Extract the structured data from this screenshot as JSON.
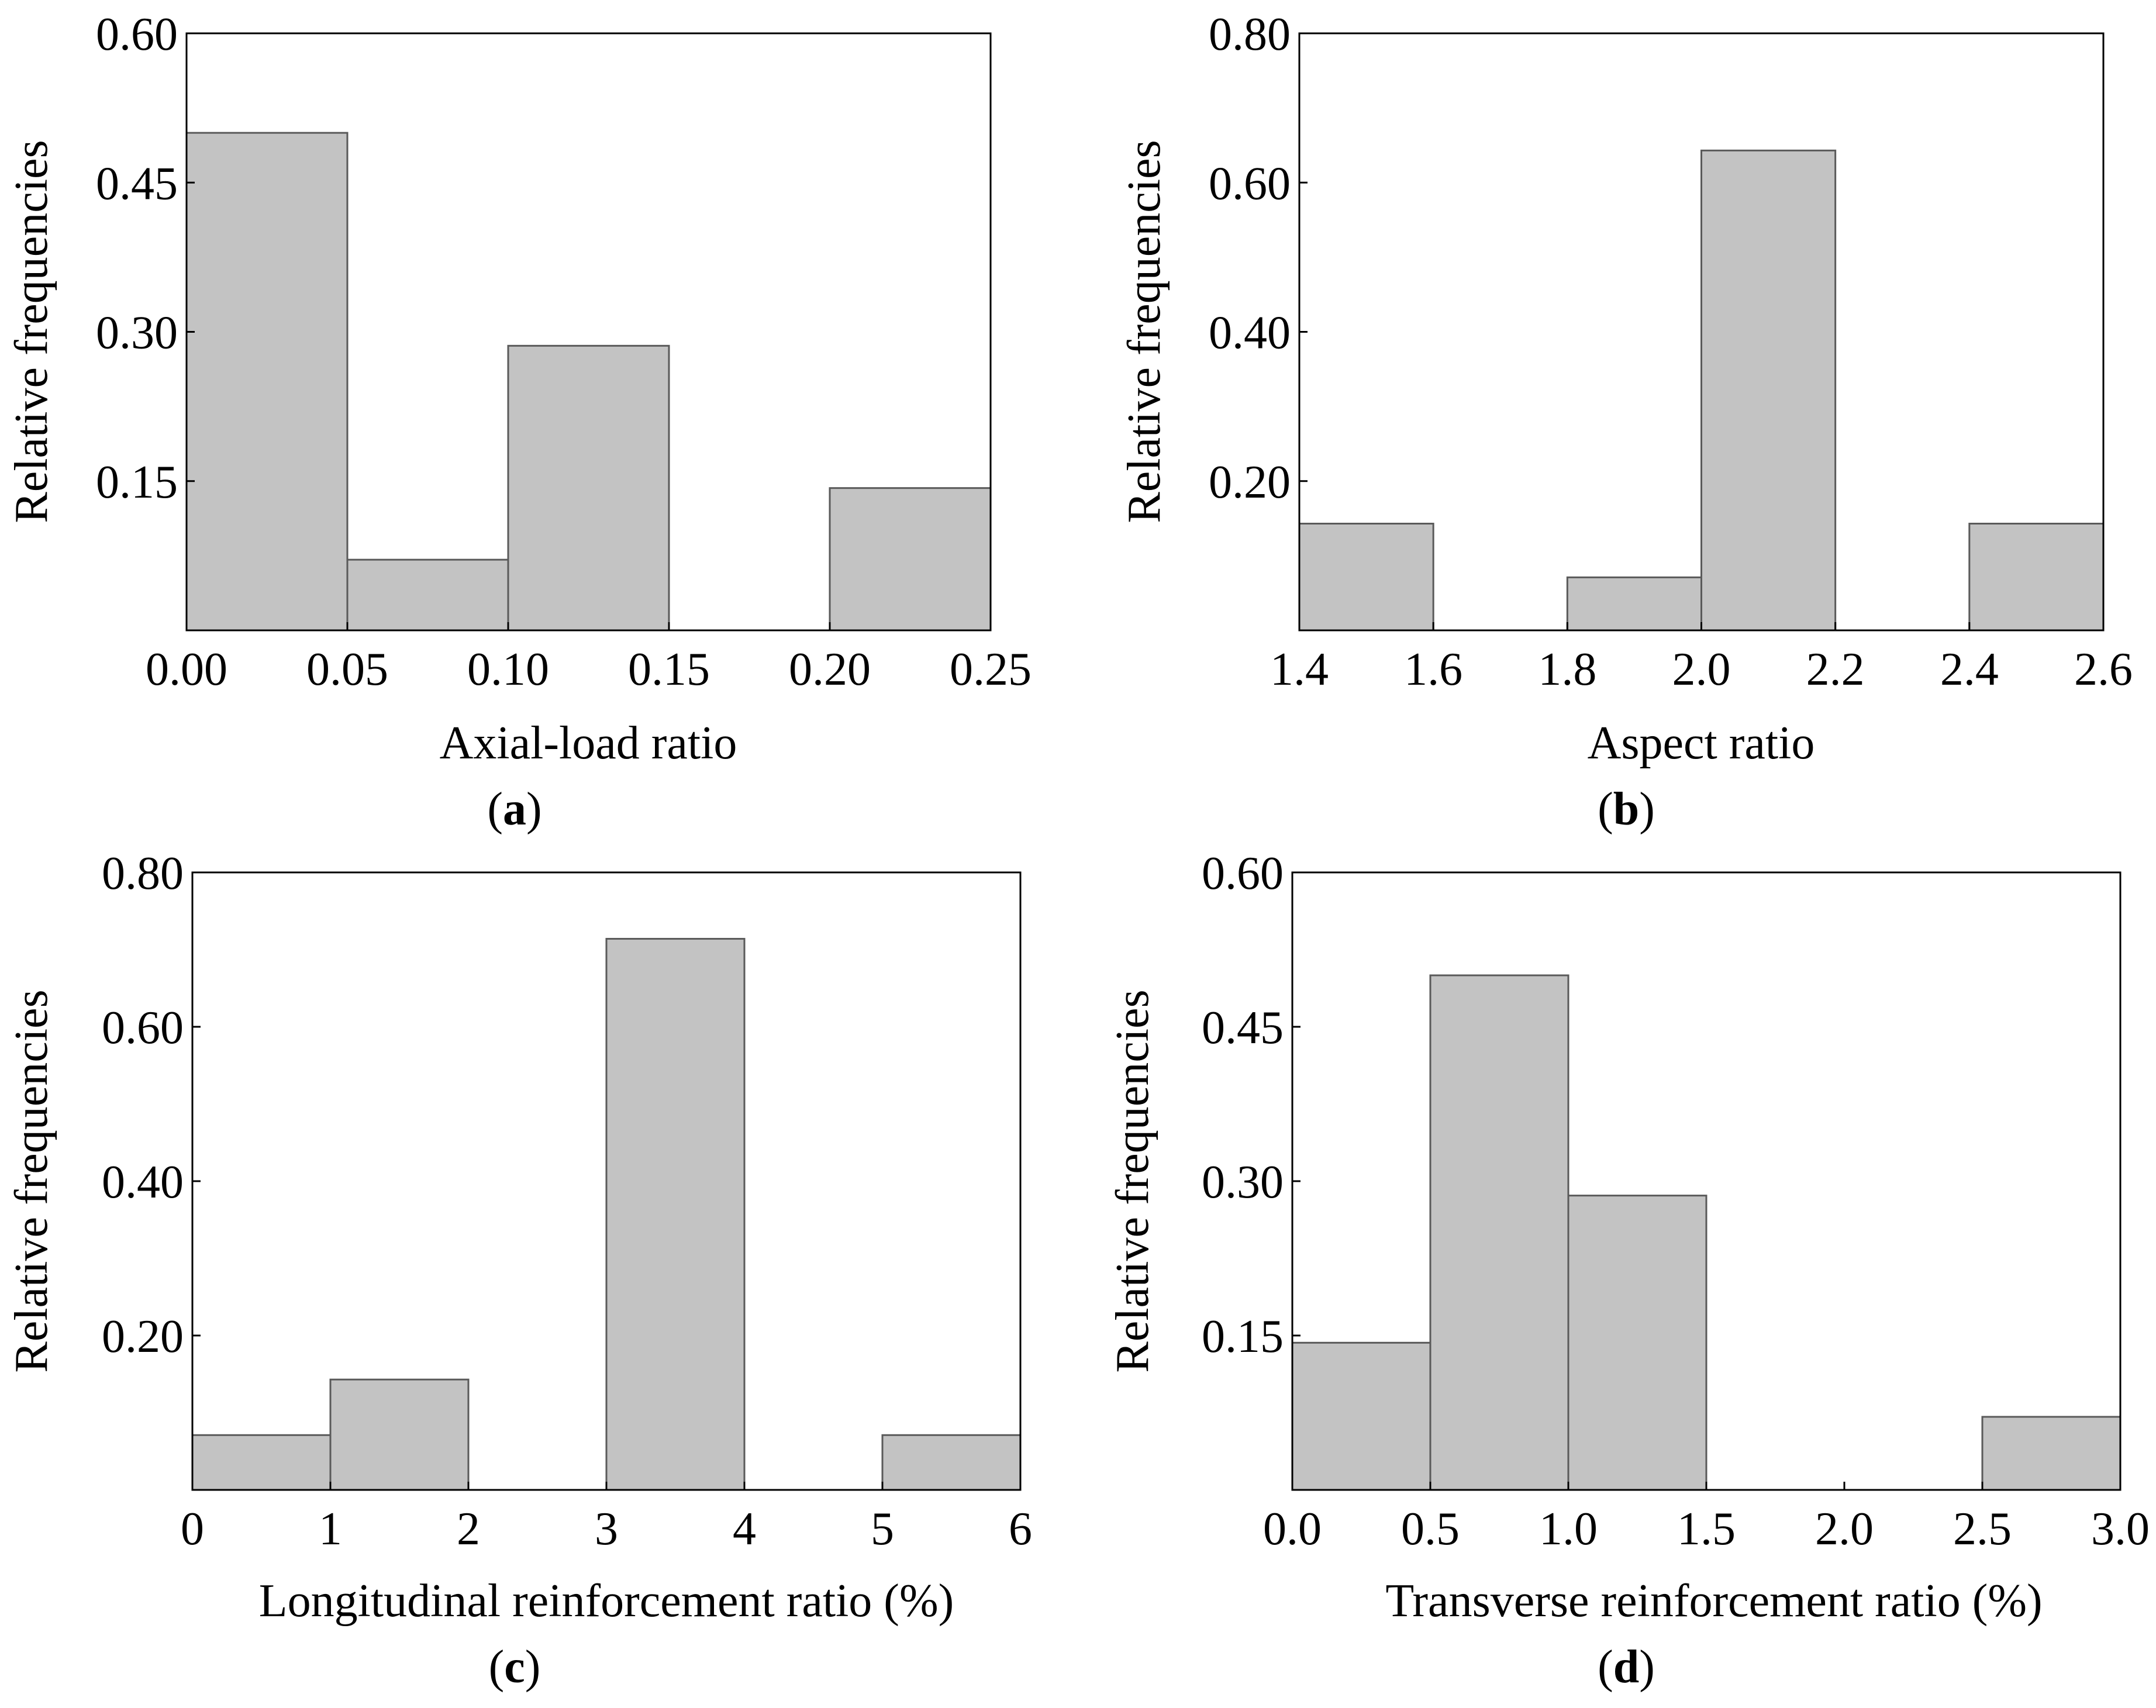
{
  "chart_data": [
    {
      "id": "a",
      "panel_letter": "a",
      "type": "bar",
      "title": "",
      "xlabel": "Axial-load ratio",
      "ylabel": "Relative frequencies",
      "xlim": [
        0.0,
        0.25
      ],
      "ylim": [
        0.0,
        0.6
      ],
      "xticks": [
        0.0,
        0.05,
        0.1,
        0.15,
        0.2,
        0.25
      ],
      "xtick_labels": [
        "0.00",
        "0.05",
        "0.10",
        "0.15",
        "0.20",
        "0.25"
      ],
      "yticks": [
        0.15,
        0.3,
        0.45,
        0.6
      ],
      "ytick_labels": [
        "0.15",
        "0.30",
        "0.45",
        "0.60"
      ],
      "bins": [
        [
          0.0,
          0.05
        ],
        [
          0.05,
          0.1
        ],
        [
          0.1,
          0.15
        ],
        [
          0.15,
          0.2
        ],
        [
          0.2,
          0.25
        ]
      ],
      "values": [
        0.5,
        0.071,
        0.286,
        0.0,
        0.143
      ],
      "grid": false,
      "colors": {
        "bar_fill": "#c3c3c3",
        "bar_edge": "#5a5a5a"
      }
    },
    {
      "id": "b",
      "panel_letter": "b",
      "type": "bar",
      "title": "",
      "xlabel": "Aspect ratio",
      "ylabel": "Relative frequencies",
      "xlim": [
        1.4,
        2.6
      ],
      "ylim": [
        0.0,
        0.8
      ],
      "xticks": [
        1.4,
        1.6,
        1.8,
        2.0,
        2.2,
        2.4,
        2.6
      ],
      "xtick_labels": [
        "1.4",
        "1.6",
        "1.8",
        "2.0",
        "2.2",
        "2.4",
        "2.6"
      ],
      "yticks": [
        0.2,
        0.4,
        0.6,
        0.8
      ],
      "ytick_labels": [
        "0.20",
        "0.40",
        "0.60",
        "0.80"
      ],
      "bins": [
        [
          1.4,
          1.6
        ],
        [
          1.6,
          1.8
        ],
        [
          1.8,
          2.0
        ],
        [
          2.0,
          2.2
        ],
        [
          2.2,
          2.4
        ],
        [
          2.4,
          2.6
        ]
      ],
      "values": [
        0.143,
        0.0,
        0.071,
        0.643,
        0.0,
        0.143
      ],
      "grid": false,
      "colors": {
        "bar_fill": "#c3c3c3",
        "bar_edge": "#5a5a5a"
      }
    },
    {
      "id": "c",
      "panel_letter": "c",
      "type": "bar",
      "title": "",
      "xlabel": "Longitudinal reinforcement ratio (%)",
      "ylabel": "Relative frequencies",
      "xlim": [
        0,
        6
      ],
      "ylim": [
        0.0,
        0.8
      ],
      "xticks": [
        0,
        1,
        2,
        3,
        4,
        5,
        6
      ],
      "xtick_labels": [
        "0",
        "1",
        "2",
        "3",
        "4",
        "5",
        "6"
      ],
      "yticks": [
        0.2,
        0.4,
        0.6,
        0.8
      ],
      "ytick_labels": [
        "0.20",
        "0.40",
        "0.60",
        "0.80"
      ],
      "bins": [
        [
          0,
          1
        ],
        [
          1,
          2
        ],
        [
          2,
          3
        ],
        [
          3,
          4
        ],
        [
          4,
          5
        ],
        [
          5,
          6
        ]
      ],
      "values": [
        0.071,
        0.143,
        0.0,
        0.714,
        0.0,
        0.071
      ],
      "grid": false,
      "colors": {
        "bar_fill": "#c3c3c3",
        "bar_edge": "#5a5a5a"
      }
    },
    {
      "id": "d",
      "panel_letter": "d",
      "type": "bar",
      "title": "",
      "xlabel": "Transverse reinforcement ratio (%)",
      "ylabel": "Relative frequencies",
      "xlim": [
        0.0,
        3.0
      ],
      "ylim": [
        0.0,
        0.6
      ],
      "xticks": [
        0.0,
        0.5,
        1.0,
        1.5,
        2.0,
        2.5,
        3.0
      ],
      "xtick_labels": [
        "0.0",
        "0.5",
        "1.0",
        "1.5",
        "2.0",
        "2.5",
        "3.0"
      ],
      "yticks": [
        0.15,
        0.3,
        0.45,
        0.6
      ],
      "ytick_labels": [
        "0.15",
        "0.30",
        "0.45",
        "0.60"
      ],
      "bins": [
        [
          0.0,
          0.5
        ],
        [
          0.5,
          1.0
        ],
        [
          1.0,
          1.5
        ],
        [
          1.5,
          2.0
        ],
        [
          2.0,
          2.5
        ],
        [
          2.5,
          3.0
        ]
      ],
      "values": [
        0.143,
        0.5,
        0.286,
        0.0,
        0.0,
        0.071
      ],
      "grid": false,
      "colors": {
        "bar_fill": "#c3c3c3",
        "bar_edge": "#5a5a5a"
      }
    }
  ]
}
